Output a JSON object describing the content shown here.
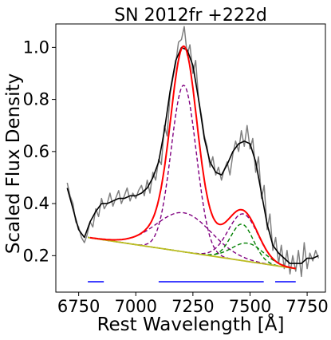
{
  "chart_data": {
    "type": "line",
    "title": "SN 2012fr  +222d",
    "xlabel": "Rest Wavelength [Å]",
    "ylabel": "Scaled Flux Density",
    "xlim": [
      6650,
      7830
    ],
    "ylim": [
      0.06,
      1.09
    ],
    "xticks": [
      6750,
      7000,
      7250,
      7500,
      7750
    ],
    "yticks": [
      0.2,
      0.4,
      0.6,
      0.8,
      1.0
    ],
    "xtick_labels": [
      "6750",
      "7000",
      "7250",
      "7500",
      "7750"
    ],
    "ytick_labels": [
      "0.2",
      "0.4",
      "0.6",
      "0.8",
      "1.0"
    ],
    "grid": false,
    "legend": false,
    "continuum": {
      "x": [
        6790,
        7700
      ],
      "y": [
        0.27,
        0.15
      ],
      "color": "#bcbd22"
    },
    "gaussians": [
      {
        "center": 7210,
        "amplitude": 0.64,
        "sigma": 55,
        "color": "#800080"
      },
      {
        "center": 7210,
        "amplitude": 0.15,
        "sigma": 120,
        "color": "#800080"
      },
      {
        "center": 7470,
        "amplitude": 0.18,
        "sigma": 65,
        "color": "#800080"
      },
      {
        "center": 7465,
        "amplitude": 0.14,
        "sigma": 50,
        "color": "#008000"
      },
      {
        "center": 7490,
        "amplitude": 0.07,
        "sigma": 70,
        "color": "#008000"
      }
    ],
    "fit_line": {
      "range": [
        6800,
        7700
      ],
      "color": "#ff0000"
    },
    "smoothed_spectrum": {
      "color": "#000000",
      "x": [
        6700,
        6725,
        6750,
        6775,
        6800,
        6825,
        6850,
        6875,
        6900,
        6925,
        6950,
        6975,
        7000,
        7025,
        7050,
        7075,
        7100,
        7125,
        7150,
        7175,
        7200,
        7225,
        7250,
        7275,
        7300,
        7325,
        7350,
        7375,
        7400,
        7425,
        7450,
        7475,
        7500,
        7525,
        7550,
        7575,
        7600,
        7625,
        7650,
        7675,
        7700,
        7725,
        7750,
        7775,
        7800
      ],
      "y": [
        0.46,
        0.38,
        0.3,
        0.27,
        0.33,
        0.37,
        0.4,
        0.4,
        0.41,
        0.42,
        0.42,
        0.43,
        0.43,
        0.44,
        0.46,
        0.5,
        0.56,
        0.68,
        0.83,
        0.95,
        1.0,
        0.99,
        0.93,
        0.8,
        0.65,
        0.56,
        0.52,
        0.51,
        0.55,
        0.6,
        0.63,
        0.64,
        0.63,
        0.56,
        0.44,
        0.32,
        0.24,
        0.21,
        0.19,
        0.17,
        0.17,
        0.17,
        0.19,
        0.19,
        0.2
      ]
    },
    "raw_spectrum": {
      "color": "#808080",
      "x": [
        6700,
        6712,
        6725,
        6737,
        6750,
        6762,
        6775,
        6787,
        6800,
        6812,
        6825,
        6837,
        6850,
        6862,
        6875,
        6887,
        6900,
        6912,
        6925,
        6937,
        6950,
        6962,
        6975,
        6987,
        7000,
        7012,
        7025,
        7037,
        7050,
        7062,
        7075,
        7087,
        7100,
        7112,
        7125,
        7137,
        7150,
        7162,
        7175,
        7187,
        7200,
        7212,
        7225,
        7237,
        7250,
        7262,
        7275,
        7287,
        7300,
        7312,
        7325,
        7337,
        7350,
        7362,
        7375,
        7387,
        7400,
        7412,
        7425,
        7437,
        7450,
        7462,
        7475,
        7487,
        7500,
        7512,
        7525,
        7537,
        7550,
        7562,
        7575,
        7587,
        7600,
        7612,
        7625,
        7637,
        7650,
        7662,
        7675,
        7687,
        7700,
        7712,
        7725,
        7737,
        7750,
        7762,
        7775,
        7787,
        7800
      ],
      "y": [
        0.48,
        0.43,
        0.4,
        0.33,
        0.31,
        0.27,
        0.25,
        0.28,
        0.33,
        0.31,
        0.38,
        0.35,
        0.42,
        0.38,
        0.4,
        0.44,
        0.39,
        0.42,
        0.45,
        0.4,
        0.43,
        0.46,
        0.41,
        0.44,
        0.42,
        0.45,
        0.47,
        0.43,
        0.49,
        0.44,
        0.52,
        0.49,
        0.57,
        0.55,
        0.7,
        0.66,
        0.82,
        0.88,
        0.94,
        1.02,
        1.03,
        1.08,
        0.97,
        1.01,
        0.9,
        0.95,
        0.8,
        0.74,
        0.66,
        0.62,
        0.54,
        0.58,
        0.51,
        0.54,
        0.49,
        0.53,
        0.56,
        0.51,
        0.59,
        0.64,
        0.6,
        0.68,
        0.62,
        0.7,
        0.61,
        0.65,
        0.52,
        0.58,
        0.42,
        0.47,
        0.3,
        0.36,
        0.22,
        0.27,
        0.17,
        0.24,
        0.15,
        0.22,
        0.13,
        0.2,
        0.14,
        0.22,
        0.12,
        0.25,
        0.15,
        0.21,
        0.18,
        0.22,
        0.19
      ]
    },
    "blue_segments": {
      "color": "#0000ff",
      "y": 0.1,
      "ranges": [
        [
          6790,
          6860
        ],
        [
          7100,
          7560
        ],
        [
          7610,
          7700
        ]
      ]
    }
  }
}
